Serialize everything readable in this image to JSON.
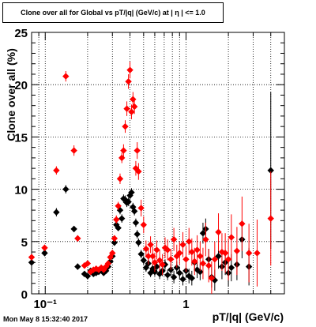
{
  "title": "Clone  over all for Global vs pT/|q| (GeV/c) at |  η | <= 1.0",
  "timestamp": "Mon May  8 15:32:40 2017",
  "colors": {
    "series_a": "#000000",
    "series_b": "#ff0000",
    "grid": "#000000"
  },
  "chart_data": {
    "type": "scatter",
    "title": "Clone  over all for Global vs pT/|q| (GeV/c) at |  η | <= 1.0",
    "xlabel": "pT/|q| (GeV/c)",
    "ylabel": "Clone  over all (%)",
    "xscale": "log",
    "xlim": [
      0.08,
      5.0
    ],
    "ylim": [
      0,
      25
    ],
    "grid": true,
    "x_ticks": [
      {
        "value": 0.1,
        "label": "10⁻¹"
      },
      {
        "value": 1,
        "label": "1"
      }
    ],
    "y_ticks": [
      0,
      5,
      10,
      15,
      20,
      25
    ],
    "series": [
      {
        "color": "#000000",
        "marker": "diamond",
        "points": [
          [
            0.08,
            3.0,
            0.3
          ],
          [
            0.099,
            3.9,
            0.3
          ],
          [
            0.12,
            7.8,
            0.4
          ],
          [
            0.14,
            10.0,
            0.4
          ],
          [
            0.16,
            6.2,
            0.3
          ],
          [
            0.17,
            2.6,
            0.3
          ],
          [
            0.19,
            1.9,
            0.2
          ],
          [
            0.2,
            1.7,
            0.2
          ],
          [
            0.21,
            2.2,
            0.2
          ],
          [
            0.22,
            1.9,
            0.2
          ],
          [
            0.23,
            2.0,
            0.2
          ],
          [
            0.24,
            2.1,
            0.2
          ],
          [
            0.25,
            2.3,
            0.2
          ],
          [
            0.26,
            2.0,
            0.2
          ],
          [
            0.27,
            2.2,
            0.2
          ],
          [
            0.28,
            2.6,
            0.2
          ],
          [
            0.29,
            3.1,
            0.3
          ],
          [
            0.3,
            3.6,
            0.3
          ],
          [
            0.31,
            4.9,
            0.3
          ],
          [
            0.32,
            6.6,
            0.3
          ],
          [
            0.33,
            6.3,
            0.3
          ],
          [
            0.34,
            8.0,
            0.4
          ],
          [
            0.35,
            7.2,
            0.4
          ],
          [
            0.36,
            9.1,
            0.4
          ],
          [
            0.37,
            9.0,
            0.4
          ],
          [
            0.38,
            8.7,
            0.4
          ],
          [
            0.39,
            8.8,
            0.4
          ],
          [
            0.4,
            9.4,
            0.4
          ],
          [
            0.41,
            9.7,
            0.4
          ],
          [
            0.42,
            8.3,
            0.4
          ],
          [
            0.43,
            7.9,
            0.4
          ],
          [
            0.44,
            6.8,
            0.4
          ],
          [
            0.45,
            5.7,
            0.4
          ],
          [
            0.46,
            4.9,
            0.4
          ],
          [
            0.48,
            3.8,
            0.4
          ],
          [
            0.5,
            3.2,
            0.4
          ],
          [
            0.52,
            2.5,
            0.4
          ],
          [
            0.54,
            2.9,
            0.4
          ],
          [
            0.56,
            2.0,
            0.4
          ],
          [
            0.58,
            2.4,
            0.4
          ],
          [
            0.6,
            2.1,
            0.4
          ],
          [
            0.62,
            2.6,
            0.5
          ],
          [
            0.65,
            1.9,
            0.5
          ],
          [
            0.68,
            2.2,
            0.5
          ],
          [
            0.71,
            2.8,
            0.5
          ],
          [
            0.74,
            1.8,
            0.5
          ],
          [
            0.78,
            2.3,
            0.6
          ],
          [
            0.82,
            1.6,
            0.6
          ],
          [
            0.86,
            2.5,
            0.6
          ],
          [
            0.9,
            2.0,
            0.6
          ],
          [
            0.95,
            1.4,
            0.6
          ],
          [
            1.0,
            2.2,
            0.7
          ],
          [
            1.05,
            1.7,
            0.7
          ],
          [
            1.1,
            1.5,
            0.7
          ],
          [
            1.15,
            3.0,
            0.8
          ],
          [
            1.2,
            2.3,
            0.8
          ],
          [
            1.26,
            2.1,
            0.8
          ],
          [
            1.32,
            5.8,
            1.0
          ],
          [
            1.38,
            6.2,
            1.0
          ],
          [
            1.45,
            3.3,
            1.0
          ],
          [
            1.52,
            1.6,
            1.0
          ],
          [
            1.6,
            1.3,
            1.0
          ],
          [
            1.7,
            3.6,
            1.2
          ],
          [
            1.8,
            2.6,
            1.2
          ],
          [
            1.9,
            3.0,
            1.2
          ],
          [
            2.0,
            2.0,
            1.3
          ],
          [
            2.1,
            2.5,
            1.3
          ],
          [
            2.3,
            2.8,
            1.5
          ],
          [
            2.5,
            5.2,
            1.8
          ],
          [
            2.8,
            2.6,
            1.8
          ],
          [
            4.0,
            11.8,
            7.5
          ]
        ]
      },
      {
        "color": "#ff0000",
        "marker": "diamond",
        "points": [
          [
            0.08,
            3.5,
            0.3
          ],
          [
            0.099,
            4.4,
            0.3
          ],
          [
            0.12,
            11.8,
            0.4
          ],
          [
            0.14,
            20.8,
            0.5
          ],
          [
            0.16,
            13.7,
            0.5
          ],
          [
            0.17,
            5.3,
            0.3
          ],
          [
            0.19,
            2.7,
            0.2
          ],
          [
            0.2,
            2.9,
            0.2
          ],
          [
            0.21,
            2.1,
            0.2
          ],
          [
            0.22,
            2.3,
            0.2
          ],
          [
            0.23,
            2.4,
            0.2
          ],
          [
            0.24,
            2.3,
            0.2
          ],
          [
            0.25,
            2.5,
            0.2
          ],
          [
            0.26,
            2.3,
            0.2
          ],
          [
            0.27,
            2.6,
            0.2
          ],
          [
            0.28,
            2.9,
            0.2
          ],
          [
            0.29,
            3.5,
            0.3
          ],
          [
            0.3,
            3.9,
            0.3
          ],
          [
            0.31,
            5.3,
            0.3
          ],
          [
            0.32,
            7.1,
            0.4
          ],
          [
            0.33,
            8.4,
            0.4
          ],
          [
            0.34,
            11.0,
            0.5
          ],
          [
            0.35,
            13.0,
            0.5
          ],
          [
            0.36,
            13.7,
            0.6
          ],
          [
            0.37,
            16.0,
            0.6
          ],
          [
            0.38,
            17.7,
            0.7
          ],
          [
            0.39,
            20.3,
            0.7
          ],
          [
            0.4,
            21.4,
            0.8
          ],
          [
            0.41,
            17.4,
            0.7
          ],
          [
            0.42,
            18.6,
            0.7
          ],
          [
            0.43,
            17.9,
            0.7
          ],
          [
            0.44,
            12.0,
            0.7
          ],
          [
            0.45,
            13.7,
            0.8
          ],
          [
            0.46,
            11.7,
            0.8
          ],
          [
            0.48,
            8.2,
            0.8
          ],
          [
            0.5,
            6.6,
            0.8
          ],
          [
            0.52,
            4.3,
            0.8
          ],
          [
            0.54,
            3.6,
            0.8
          ],
          [
            0.56,
            4.7,
            0.8
          ],
          [
            0.58,
            3.6,
            0.9
          ],
          [
            0.6,
            3.0,
            0.9
          ],
          [
            0.62,
            4.2,
            0.9
          ],
          [
            0.65,
            3.2,
            1.0
          ],
          [
            0.68,
            2.8,
            1.0
          ],
          [
            0.71,
            4.4,
            1.0
          ],
          [
            0.74,
            4.2,
            1.0
          ],
          [
            0.78,
            3.3,
            1.0
          ],
          [
            0.82,
            5.2,
            1.1
          ],
          [
            0.86,
            3.6,
            1.1
          ],
          [
            0.9,
            3.9,
            1.1
          ],
          [
            0.95,
            4.7,
            1.2
          ],
          [
            1.0,
            3.3,
            1.2
          ],
          [
            1.05,
            5.0,
            1.3
          ],
          [
            1.1,
            4.0,
            1.3
          ],
          [
            1.15,
            3.1,
            1.3
          ],
          [
            1.2,
            4.2,
            1.4
          ],
          [
            1.26,
            3.6,
            1.4
          ],
          [
            1.32,
            2.9,
            1.5
          ],
          [
            1.38,
            5.2,
            1.6
          ],
          [
            1.45,
            2.7,
            1.6
          ],
          [
            1.52,
            1.5,
            1.6
          ],
          [
            1.6,
            3.3,
            1.7
          ],
          [
            1.7,
            5.9,
            1.8
          ],
          [
            1.8,
            4.0,
            1.8
          ],
          [
            1.9,
            3.9,
            1.9
          ],
          [
            2.0,
            3.3,
            2.0
          ],
          [
            2.1,
            5.4,
            2.2
          ],
          [
            2.3,
            4.1,
            2.3
          ],
          [
            2.5,
            6.7,
            2.6
          ],
          [
            2.8,
            3.9,
            2.8
          ],
          [
            3.2,
            3.9,
            3.2
          ],
          [
            4.0,
            7.2,
            4.5
          ]
        ]
      }
    ]
  }
}
